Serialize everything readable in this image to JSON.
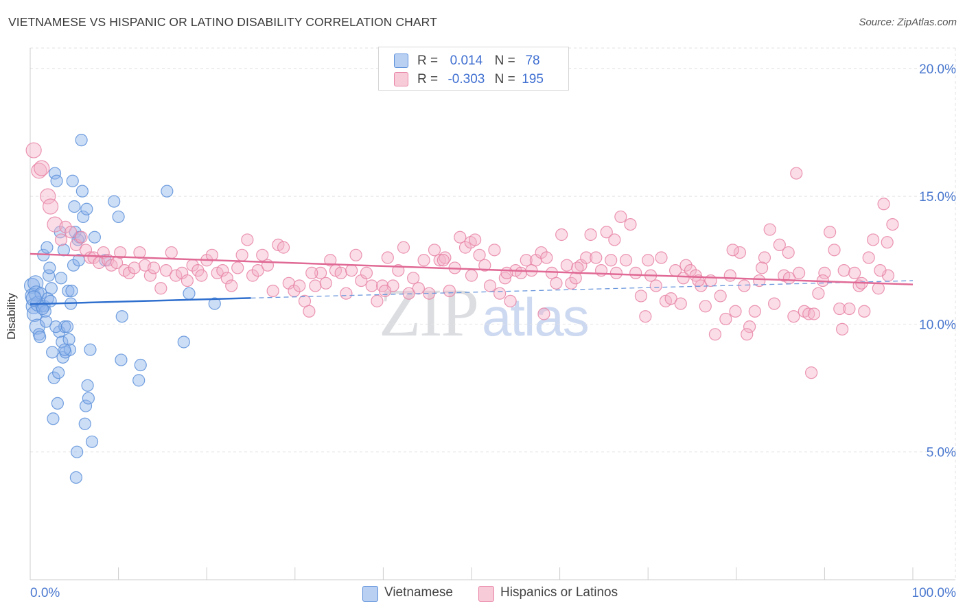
{
  "chart_data": {
    "type": "scatter",
    "title": "VIETNAMESE VS HISPANIC OR LATINO DISABILITY CORRELATION CHART",
    "source": "Source: ZipAtlas.com",
    "xlabel": "",
    "ylabel": "Disability",
    "xlim": [
      0,
      100
    ],
    "ylim": [
      0,
      20.8
    ],
    "x_tick_labels": [
      "0.0%",
      "100.0%"
    ],
    "y_ticks": [
      5,
      10,
      15,
      20
    ],
    "y_tick_labels": [
      "5.0%",
      "10.0%",
      "15.0%",
      "20.0%"
    ],
    "grid": true,
    "watermark": {
      "zip": "ZIP",
      "atlas": "atlas"
    },
    "legend_stats": [
      {
        "r_label": "R =",
        "r_value": "0.014",
        "n_label": "N =",
        "n_value": "78"
      },
      {
        "r_label": "R =",
        "r_value": "-0.303",
        "n_label": "N =",
        "n_value": "195"
      }
    ],
    "series": [
      {
        "name": "Vietnamese",
        "color": "#8fb4ec",
        "stroke": "#5b8fd9",
        "trend": {
          "x0": 0,
          "y0": 10.78,
          "x1": 25,
          "y1": 11.02,
          "color": "#2f6fce"
        },
        "trend_ext": {
          "x0": 25,
          "y0": 11.02,
          "x1": 100,
          "y1": 11.7
        },
        "points": [
          [
            0.2,
            11.5
          ],
          [
            0.3,
            11.1
          ],
          [
            0.4,
            10.7
          ],
          [
            0.5,
            10.4
          ],
          [
            0.6,
            11.6
          ],
          [
            0.7,
            11.2
          ],
          [
            0.8,
            9.9
          ],
          [
            0.9,
            10.8
          ],
          [
            1.0,
            9.6
          ],
          [
            1.1,
            9.5
          ],
          [
            1.2,
            11.2
          ],
          [
            1.3,
            10.7
          ],
          [
            1.5,
            12.7
          ],
          [
            1.6,
            10.7
          ],
          [
            1.7,
            10.5
          ],
          [
            1.8,
            10.1
          ],
          [
            1.9,
            13.0
          ],
          [
            2.0,
            11.0
          ],
          [
            2.1,
            11.9
          ],
          [
            2.2,
            12.2
          ],
          [
            2.3,
            10.9
          ],
          [
            2.4,
            11.4
          ],
          [
            2.5,
            8.9
          ],
          [
            2.6,
            6.3
          ],
          [
            2.7,
            7.9
          ],
          [
            2.8,
            15.9
          ],
          [
            3.0,
            15.6
          ],
          [
            3.1,
            6.9
          ],
          [
            3.2,
            8.1
          ],
          [
            3.3,
            9.7
          ],
          [
            3.4,
            13.6
          ],
          [
            3.5,
            11.8
          ],
          [
            3.6,
            9.3
          ],
          [
            3.7,
            8.7
          ],
          [
            3.8,
            12.9
          ],
          [
            3.9,
            9.9
          ],
          [
            4.0,
            8.9
          ],
          [
            4.2,
            9.9
          ],
          [
            4.3,
            11.3
          ],
          [
            4.4,
            9.4
          ],
          [
            4.5,
            9.0
          ],
          [
            4.6,
            10.8
          ],
          [
            4.7,
            11.3
          ],
          [
            4.8,
            15.6
          ],
          [
            4.9,
            12.3
          ],
          [
            5.0,
            14.6
          ],
          [
            5.1,
            13.6
          ],
          [
            5.2,
            4.0
          ],
          [
            5.3,
            5.0
          ],
          [
            5.4,
            13.3
          ],
          [
            5.6,
            13.4
          ],
          [
            5.8,
            17.2
          ],
          [
            5.9,
            15.2
          ],
          [
            6.0,
            14.2
          ],
          [
            6.2,
            6.1
          ],
          [
            6.3,
            6.8
          ],
          [
            6.4,
            14.5
          ],
          [
            6.5,
            7.6
          ],
          [
            6.6,
            7.1
          ],
          [
            6.8,
            9.0
          ],
          [
            7.0,
            5.4
          ],
          [
            7.3,
            13.4
          ],
          [
            8.5,
            12.5
          ],
          [
            9.5,
            14.8
          ],
          [
            10.0,
            14.2
          ],
          [
            10.3,
            8.6
          ],
          [
            10.4,
            10.3
          ],
          [
            12.5,
            8.4
          ],
          [
            12.3,
            7.8
          ],
          [
            15.5,
            15.2
          ],
          [
            18.0,
            11.2
          ],
          [
            20.9,
            10.8
          ],
          [
            17.4,
            9.3
          ],
          [
            5.5,
            12.5
          ],
          [
            3.9,
            9.0
          ],
          [
            2.9,
            9.9
          ],
          [
            0.4,
            11.0
          ],
          [
            1.4,
            10.6
          ]
        ]
      },
      {
        "name": "Hispanics or Latinos",
        "color": "#f4b4c9",
        "stroke": "#e883a5",
        "trend": {
          "x0": 0,
          "y0": 12.75,
          "x1": 100,
          "y1": 11.55,
          "color": "#e06a95"
        },
        "points": [
          [
            0.4,
            16.8
          ],
          [
            1.0,
            16.0
          ],
          [
            1.3,
            16.1
          ],
          [
            2.0,
            15.0
          ],
          [
            2.3,
            14.6
          ],
          [
            2.8,
            13.9
          ],
          [
            3.5,
            13.3
          ],
          [
            4.0,
            13.8
          ],
          [
            4.6,
            13.6
          ],
          [
            5.2,
            13.1
          ],
          [
            5.8,
            13.4
          ],
          [
            6.3,
            12.9
          ],
          [
            6.8,
            12.6
          ],
          [
            7.2,
            12.6
          ],
          [
            7.8,
            12.4
          ],
          [
            8.3,
            12.8
          ],
          [
            8.8,
            12.5
          ],
          [
            9.2,
            12.3
          ],
          [
            9.8,
            12.4
          ],
          [
            10.2,
            12.8
          ],
          [
            10.7,
            12.1
          ],
          [
            11.2,
            12.0
          ],
          [
            11.8,
            12.2
          ],
          [
            12.4,
            12.8
          ],
          [
            13.0,
            12.3
          ],
          [
            13.6,
            11.9
          ],
          [
            14.0,
            12.2
          ],
          [
            14.8,
            11.4
          ],
          [
            15.4,
            12.1
          ],
          [
            16.0,
            12.8
          ],
          [
            16.5,
            11.9
          ],
          [
            17.2,
            12.0
          ],
          [
            17.8,
            11.7
          ],
          [
            18.4,
            12.3
          ],
          [
            19.0,
            12.1
          ],
          [
            19.4,
            11.9
          ],
          [
            20.0,
            12.5
          ],
          [
            20.6,
            12.7
          ],
          [
            21.2,
            12.0
          ],
          [
            21.8,
            12.1
          ],
          [
            22.3,
            11.8
          ],
          [
            22.8,
            11.5
          ],
          [
            23.5,
            12.2
          ],
          [
            24.0,
            12.7
          ],
          [
            24.6,
            13.3
          ],
          [
            25.2,
            11.9
          ],
          [
            25.8,
            12.1
          ],
          [
            26.3,
            12.7
          ],
          [
            26.9,
            12.3
          ],
          [
            27.5,
            11.3
          ],
          [
            28.1,
            13.1
          ],
          [
            28.7,
            13.0
          ],
          [
            29.3,
            11.6
          ],
          [
            29.9,
            11.3
          ],
          [
            30.5,
            11.5
          ],
          [
            31.1,
            10.9
          ],
          [
            31.6,
            10.5
          ],
          [
            32.3,
            11.5
          ],
          [
            32.9,
            12.0
          ],
          [
            33.5,
            11.6
          ],
          [
            34.0,
            12.5
          ],
          [
            34.6,
            12.1
          ],
          [
            35.2,
            12.0
          ],
          [
            35.8,
            11.2
          ],
          [
            36.4,
            12.1
          ],
          [
            36.9,
            12.7
          ],
          [
            37.5,
            11.7
          ],
          [
            38.1,
            12.0
          ],
          [
            38.7,
            11.5
          ],
          [
            39.3,
            10.9
          ],
          [
            39.9,
            11.5
          ],
          [
            40.5,
            12.6
          ],
          [
            41.1,
            11.5
          ],
          [
            41.7,
            12.1
          ],
          [
            42.3,
            13.0
          ],
          [
            42.9,
            11.2
          ],
          [
            43.4,
            11.8
          ],
          [
            44.0,
            11.4
          ],
          [
            44.6,
            12.5
          ],
          [
            45.2,
            11.2
          ],
          [
            45.8,
            12.9
          ],
          [
            46.4,
            12.5
          ],
          [
            47.0,
            12.6
          ],
          [
            47.5,
            11.3
          ],
          [
            48.1,
            12.2
          ],
          [
            48.7,
            13.4
          ],
          [
            49.3,
            13.0
          ],
          [
            49.9,
            13.2
          ],
          [
            50.4,
            13.3
          ],
          [
            50.9,
            12.7
          ],
          [
            51.5,
            12.3
          ],
          [
            52.1,
            11.5
          ],
          [
            52.6,
            12.9
          ],
          [
            53.2,
            11.2
          ],
          [
            53.8,
            11.8
          ],
          [
            54.4,
            10.9
          ],
          [
            55.0,
            12.1
          ],
          [
            55.6,
            12.0
          ],
          [
            56.2,
            12.5
          ],
          [
            56.8,
            12.1
          ],
          [
            57.3,
            12.5
          ],
          [
            57.9,
            12.8
          ],
          [
            58.5,
            12.6
          ],
          [
            59.1,
            12.0
          ],
          [
            59.6,
            11.6
          ],
          [
            60.2,
            13.5
          ],
          [
            60.8,
            12.3
          ],
          [
            61.3,
            11.6
          ],
          [
            61.8,
            11.8
          ],
          [
            62.4,
            12.3
          ],
          [
            63.0,
            12.6
          ],
          [
            63.5,
            13.5
          ],
          [
            64.1,
            12.6
          ],
          [
            64.7,
            12.1
          ],
          [
            65.3,
            13.6
          ],
          [
            65.8,
            12.5
          ],
          [
            66.4,
            12.0
          ],
          [
            66.9,
            14.2
          ],
          [
            67.5,
            12.5
          ],
          [
            68.0,
            13.9
          ],
          [
            68.6,
            12.0
          ],
          [
            69.2,
            11.1
          ],
          [
            69.7,
            10.3
          ],
          [
            70.3,
            11.9
          ],
          [
            70.9,
            11.5
          ],
          [
            71.5,
            12.6
          ],
          [
            72.0,
            10.9
          ],
          [
            72.6,
            11.0
          ],
          [
            73.1,
            12.1
          ],
          [
            73.7,
            10.8
          ],
          [
            74.3,
            12.3
          ],
          [
            74.8,
            12.1
          ],
          [
            75.4,
            11.9
          ],
          [
            76.0,
            11.5
          ],
          [
            76.5,
            10.7
          ],
          [
            77.1,
            11.7
          ],
          [
            77.6,
            9.6
          ],
          [
            78.2,
            11.1
          ],
          [
            78.8,
            10.2
          ],
          [
            79.3,
            11.9
          ],
          [
            79.9,
            10.5
          ],
          [
            80.4,
            12.8
          ],
          [
            80.9,
            11.5
          ],
          [
            81.5,
            9.9
          ],
          [
            82.1,
            10.5
          ],
          [
            82.6,
            11.7
          ],
          [
            83.2,
            12.6
          ],
          [
            83.8,
            13.7
          ],
          [
            84.3,
            10.8
          ],
          [
            84.9,
            13.1
          ],
          [
            85.4,
            11.9
          ],
          [
            86.0,
            11.8
          ],
          [
            86.5,
            10.3
          ],
          [
            87.1,
            12.0
          ],
          [
            87.7,
            10.5
          ],
          [
            88.2,
            10.4
          ],
          [
            88.8,
            10.4
          ],
          [
            89.3,
            11.2
          ],
          [
            90.0,
            12.0
          ],
          [
            90.6,
            13.6
          ],
          [
            91.1,
            12.9
          ],
          [
            91.7,
            10.6
          ],
          [
            92.2,
            12.1
          ],
          [
            92.8,
            10.6
          ],
          [
            93.4,
            12.0
          ],
          [
            93.9,
            11.5
          ],
          [
            94.5,
            10.5
          ],
          [
            95.0,
            12.6
          ],
          [
            95.5,
            13.3
          ],
          [
            96.1,
            11.4
          ],
          [
            96.7,
            14.7
          ],
          [
            97.2,
            11.9
          ],
          [
            97.7,
            13.9
          ],
          [
            97.1,
            13.2
          ],
          [
            96.3,
            12.1
          ],
          [
            94.2,
            11.6
          ],
          [
            92.0,
            9.8
          ],
          [
            89.8,
            11.7
          ],
          [
            88.5,
            8.1
          ],
          [
            86.8,
            15.9
          ],
          [
            85.9,
            12.8
          ],
          [
            82.9,
            12.2
          ],
          [
            81.2,
            9.6
          ],
          [
            79.6,
            12.9
          ],
          [
            75.7,
            11.7
          ],
          [
            74.0,
            11.8
          ],
          [
            70.0,
            12.5
          ],
          [
            66.2,
            13.3
          ],
          [
            62.0,
            12.2
          ],
          [
            58.2,
            10.4
          ],
          [
            54.0,
            12.0
          ],
          [
            50.0,
            11.9
          ],
          [
            46.8,
            12.5
          ],
          [
            40.2,
            11.3
          ],
          [
            31.9,
            12.0
          ]
        ]
      }
    ]
  },
  "legend_bottom": [
    "Vietnamese",
    "Hispanics or Latinos"
  ]
}
